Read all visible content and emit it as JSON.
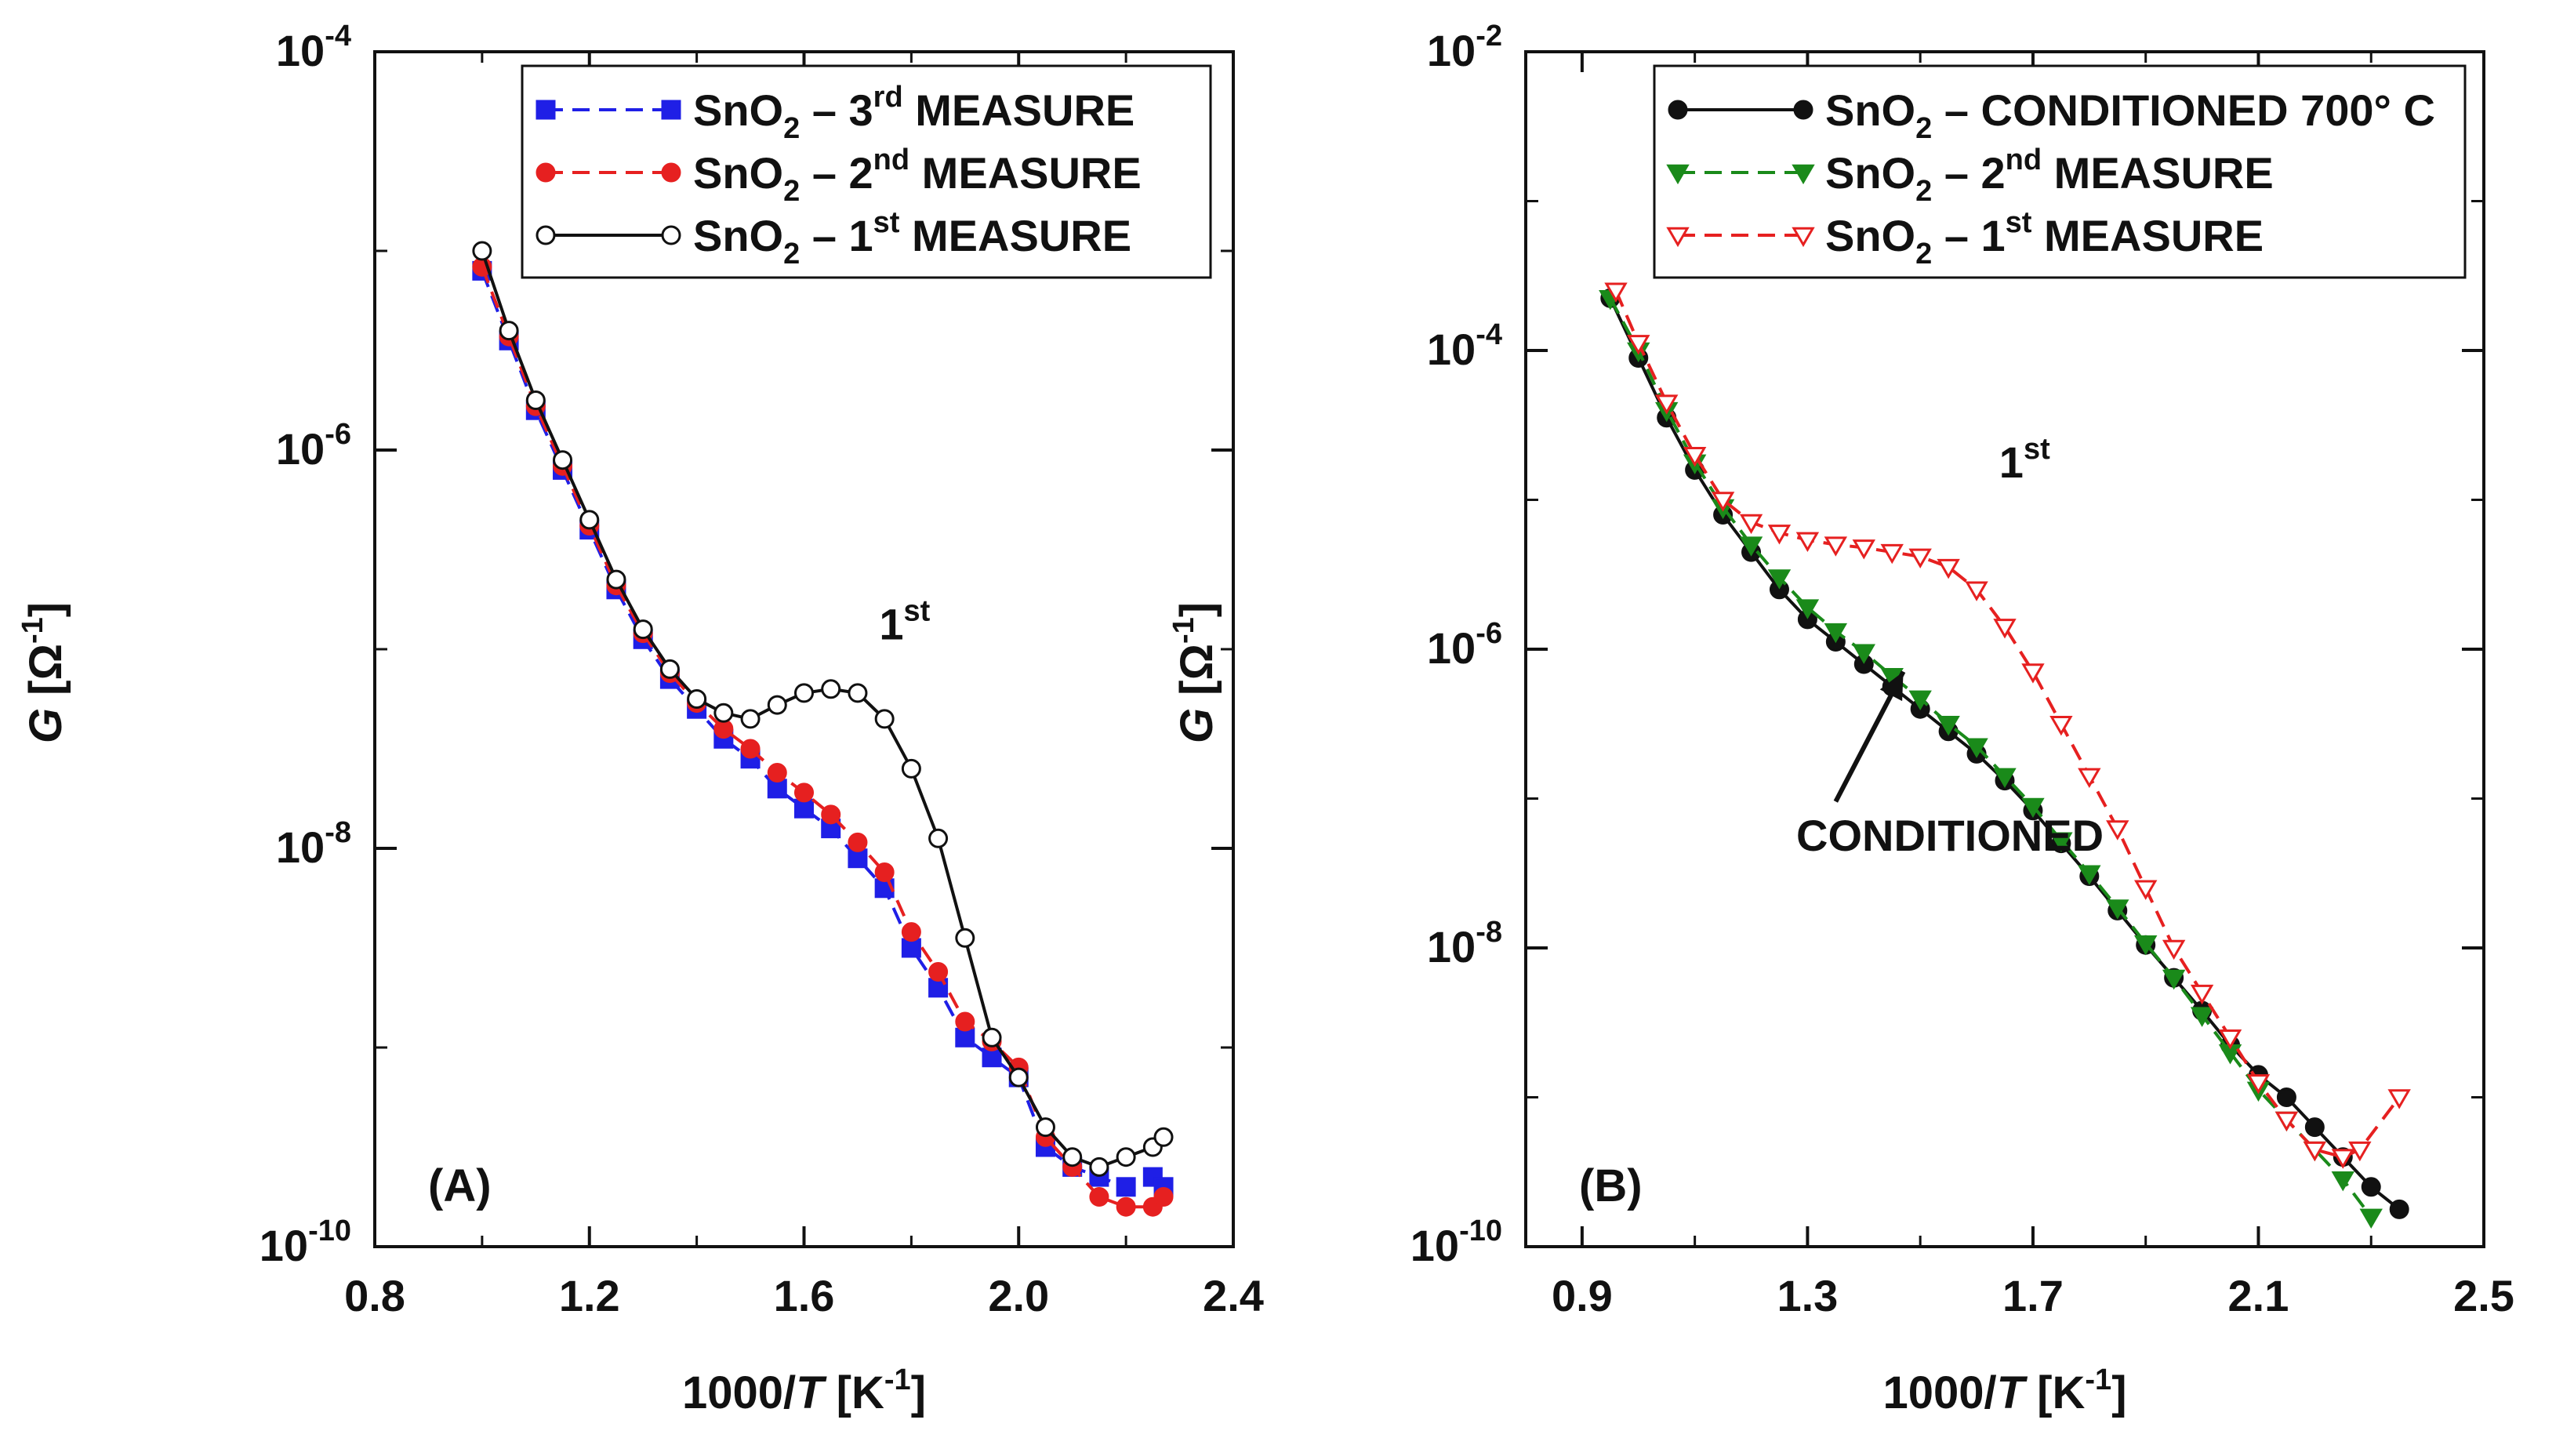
{
  "chart_data": [
    {
      "type": "line",
      "panel_label": "(A)",
      "xlabel": "1000/T [K⁻¹]",
      "xlabel_prefix": "1000/",
      "xlabel_var": "T",
      "xlabel_unit": " [K",
      "xlabel_exp": "-1",
      "xlabel_close": "]",
      "ylabel": "G [Ω⁻¹]",
      "ylabel_var": "G",
      "ylabel_unit": " [Ω",
      "ylabel_exp": "-1",
      "ylabel_close": "]",
      "xlim": [
        0.8,
        2.4
      ],
      "ylim_log10": [
        -10,
        -4
      ],
      "xticks": [
        {
          "value": 0.8,
          "label": "0.8"
        },
        {
          "value": 1.2,
          "label": "1.2"
        },
        {
          "value": 1.6,
          "label": "1.6"
        },
        {
          "value": 2.0,
          "label": "2.0"
        },
        {
          "value": 2.4,
          "label": "2.4"
        }
      ],
      "yticks": [
        {
          "exp": -4,
          "base": "10",
          "sup": "-4"
        },
        {
          "exp": -6,
          "base": "10",
          "sup": "-6"
        },
        {
          "exp": -8,
          "base": "10",
          "sup": "-8"
        },
        {
          "exp": -10,
          "base": "10",
          "sup": "-10"
        }
      ],
      "annotations": [
        {
          "text": "1",
          "sup": "st",
          "x": 1.74,
          "y_log10": -6.95
        }
      ],
      "legend": "top-right",
      "series": [
        {
          "name": "SnO2 – 3rd MEASURE",
          "legend_main": "SnO",
          "legend_sub": "2",
          "legend_mid": " – 3",
          "legend_sup": "rd",
          "legend_tail": " MEASURE",
          "color": "#1f1fe6",
          "marker": "square",
          "dash": "dashed",
          "x": [
            1.0,
            1.05,
            1.1,
            1.15,
            1.2,
            1.25,
            1.3,
            1.35,
            1.4,
            1.45,
            1.5,
            1.55,
            1.6,
            1.65,
            1.7,
            1.75,
            1.8,
            1.85,
            1.9,
            1.95,
            2.0,
            2.05,
            2.1,
            2.15,
            2.2,
            2.25,
            2.27
          ],
          "y_log10": [
            -5.1,
            -5.45,
            -5.8,
            -6.1,
            -6.4,
            -6.7,
            -6.95,
            -7.15,
            -7.3,
            -7.45,
            -7.55,
            -7.7,
            -7.8,
            -7.9,
            -8.05,
            -8.2,
            -8.5,
            -8.7,
            -8.95,
            -9.05,
            -9.15,
            -9.5,
            -9.6,
            -9.65,
            -9.7,
            -9.65,
            -9.7
          ]
        },
        {
          "name": "SnO2 – 2nd MEASURE",
          "legend_main": "SnO",
          "legend_sub": "2",
          "legend_mid": " – 2",
          "legend_sup": "nd",
          "legend_tail": " MEASURE",
          "color": "#e62020",
          "marker": "circle",
          "dash": "dashed",
          "x": [
            1.0,
            1.05,
            1.1,
            1.15,
            1.2,
            1.25,
            1.3,
            1.35,
            1.4,
            1.45,
            1.5,
            1.55,
            1.6,
            1.65,
            1.7,
            1.75,
            1.8,
            1.85,
            1.9,
            1.95,
            2.0,
            2.05,
            2.1,
            2.15,
            2.2,
            2.25,
            2.27
          ],
          "y_log10": [
            -5.08,
            -5.43,
            -5.78,
            -6.08,
            -6.38,
            -6.68,
            -6.92,
            -7.12,
            -7.27,
            -7.4,
            -7.5,
            -7.62,
            -7.72,
            -7.83,
            -7.97,
            -8.12,
            -8.42,
            -8.62,
            -8.87,
            -8.97,
            -9.1,
            -9.45,
            -9.6,
            -9.75,
            -9.8,
            -9.8,
            -9.75
          ]
        },
        {
          "name": "SnO2 – 1st MEASURE",
          "legend_main": "SnO",
          "legend_sub": "2",
          "legend_mid": " – 1",
          "legend_sup": "st",
          "legend_tail": "  MEASURE",
          "color": "#111111",
          "marker": "open-circle",
          "dash": "solid",
          "x": [
            1.0,
            1.05,
            1.1,
            1.15,
            1.2,
            1.25,
            1.3,
            1.35,
            1.4,
            1.45,
            1.5,
            1.55,
            1.6,
            1.65,
            1.7,
            1.75,
            1.8,
            1.85,
            1.9,
            1.95,
            2.0,
            2.05,
            2.1,
            2.15,
            2.2,
            2.25,
            2.27
          ],
          "y_log10": [
            -5.0,
            -5.4,
            -5.75,
            -6.05,
            -6.35,
            -6.65,
            -6.9,
            -7.1,
            -7.25,
            -7.32,
            -7.35,
            -7.28,
            -7.22,
            -7.2,
            -7.22,
            -7.35,
            -7.6,
            -7.95,
            -8.45,
            -8.95,
            -9.15,
            -9.4,
            -9.55,
            -9.6,
            -9.55,
            -9.5,
            -9.45
          ]
        }
      ]
    },
    {
      "type": "line",
      "panel_label": "(B)",
      "xlabel": "1000/T [K⁻¹]",
      "xlabel_prefix": "1000/",
      "xlabel_var": "T",
      "xlabel_unit": " [K",
      "xlabel_exp": "-1",
      "xlabel_close": "]",
      "ylabel": "G [Ω⁻¹]",
      "ylabel_var": "G",
      "ylabel_unit": " [Ω",
      "ylabel_exp": "-1",
      "ylabel_close": "]",
      "xlim": [
        0.8,
        2.5
      ],
      "ylim_log10": [
        -10,
        -2
      ],
      "xticks": [
        {
          "value": 0.9,
          "label": "0.9"
        },
        {
          "value": 1.3,
          "label": "1.3"
        },
        {
          "value": 1.7,
          "label": "1.7"
        },
        {
          "value": 2.1,
          "label": "2.1"
        },
        {
          "value": 2.5,
          "label": "2.5"
        }
      ],
      "yticks": [
        {
          "exp": -2,
          "base": "10",
          "sup": "-2"
        },
        {
          "exp": -4,
          "base": "10",
          "sup": "-4"
        },
        {
          "exp": -6,
          "base": "10",
          "sup": "-6"
        },
        {
          "exp": -8,
          "base": "10",
          "sup": "-8"
        },
        {
          "exp": -10,
          "base": "10",
          "sup": "-10"
        }
      ],
      "annotations": [
        {
          "text": "1",
          "sup": "st",
          "x": 1.64,
          "y_log10": -4.85
        },
        {
          "text": "CONDITIONED",
          "sup": "",
          "x": 1.28,
          "y_log10": -7.35
        }
      ],
      "arrow": {
        "from_x": 1.35,
        "from_y_log10": -7.02,
        "to_x": 1.47,
        "to_y_log10": -6.15
      },
      "legend": "top-right",
      "series": [
        {
          "name": "SnO2 – CONDITIONED 700° C",
          "legend_main": "SnO",
          "legend_sub": "2",
          "legend_mid": " – CONDITIONED 700° C",
          "legend_sup": "",
          "legend_tail": "",
          "color": "#111111",
          "marker": "circle",
          "dash": "solid",
          "x": [
            0.95,
            1.0,
            1.05,
            1.1,
            1.15,
            1.2,
            1.25,
            1.3,
            1.35,
            1.4,
            1.45,
            1.5,
            1.55,
            1.6,
            1.65,
            1.7,
            1.75,
            1.8,
            1.85,
            1.9,
            1.95,
            2.0,
            2.05,
            2.1,
            2.15,
            2.2,
            2.25,
            2.3,
            2.35
          ],
          "y_log10": [
            -3.65,
            -4.05,
            -4.45,
            -4.8,
            -5.1,
            -5.35,
            -5.6,
            -5.8,
            -5.95,
            -6.1,
            -6.25,
            -6.4,
            -6.55,
            -6.7,
            -6.88,
            -7.08,
            -7.3,
            -7.52,
            -7.75,
            -7.98,
            -8.2,
            -8.42,
            -8.65,
            -8.85,
            -9.0,
            -9.2,
            -9.4,
            -9.6,
            -9.75
          ]
        },
        {
          "name": "SnO2 – 2nd MEASURE",
          "legend_main": "SnO",
          "legend_sub": "2",
          "legend_mid": " – 2",
          "legend_sup": "nd",
          "legend_tail": " MEASURE",
          "color": "#1a8a1a",
          "marker": "triangle-down",
          "dash": "dashed",
          "x": [
            0.95,
            1.0,
            1.05,
            1.1,
            1.15,
            1.2,
            1.25,
            1.3,
            1.35,
            1.4,
            1.45,
            1.5,
            1.55,
            1.6,
            1.65,
            1.7,
            1.75,
            1.8,
            1.85,
            1.9,
            1.95,
            2.0,
            2.05,
            2.1,
            2.15,
            2.2,
            2.25,
            2.3
          ],
          "y_log10": [
            -3.65,
            -4.0,
            -4.4,
            -4.75,
            -5.05,
            -5.3,
            -5.52,
            -5.72,
            -5.88,
            -6.02,
            -6.18,
            -6.33,
            -6.5,
            -6.65,
            -6.85,
            -7.05,
            -7.28,
            -7.5,
            -7.73,
            -7.97,
            -8.2,
            -8.45,
            -8.7,
            -8.95,
            -9.15,
            -9.35,
            -9.55,
            -9.8
          ]
        },
        {
          "name": "SnO2 – 1st MEASURE",
          "legend_main": "SnO",
          "legend_sub": "2",
          "legend_mid": " – 1",
          "legend_sup": "st",
          "legend_tail": "  MEASURE",
          "color": "#e62020",
          "marker": "open-triangle-down",
          "dash": "dashed",
          "x": [
            0.96,
            1.0,
            1.05,
            1.1,
            1.15,
            1.2,
            1.25,
            1.3,
            1.35,
            1.4,
            1.45,
            1.5,
            1.55,
            1.6,
            1.65,
            1.7,
            1.75,
            1.8,
            1.85,
            1.9,
            1.95,
            2.0,
            2.05,
            2.1,
            2.15,
            2.2,
            2.25,
            2.28,
            2.35
          ],
          "y_log10": [
            -3.6,
            -3.95,
            -4.35,
            -4.7,
            -5.0,
            -5.15,
            -5.22,
            -5.27,
            -5.3,
            -5.32,
            -5.35,
            -5.38,
            -5.45,
            -5.6,
            -5.85,
            -6.15,
            -6.5,
            -6.85,
            -7.2,
            -7.6,
            -8.0,
            -8.3,
            -8.6,
            -8.9,
            -9.15,
            -9.35,
            -9.4,
            -9.35,
            -9.0
          ]
        }
      ]
    }
  ]
}
